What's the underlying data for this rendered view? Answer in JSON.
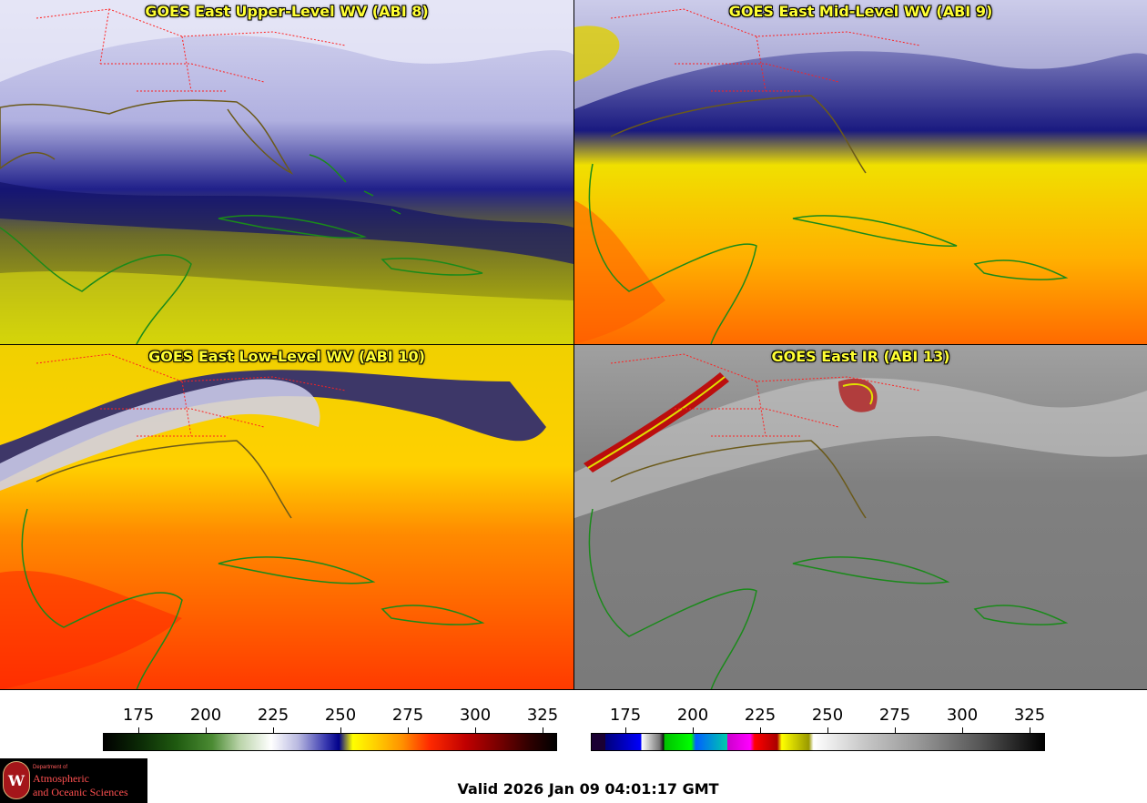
{
  "panels": {
    "upper": {
      "title": "GOES East Upper-Level WV (ABI 8)"
    },
    "mid": {
      "title": "GOES East Mid-Level WV (ABI 9)"
    },
    "low": {
      "title": "GOES East Low-Level WV (ABI 10)"
    },
    "ir": {
      "title": "GOES East IR (ABI 13)"
    }
  },
  "colorbars": {
    "wv": {
      "ticks": [
        "175",
        "200",
        "225",
        "250",
        "275",
        "300",
        "325"
      ]
    },
    "ir": {
      "ticks": [
        "175",
        "200",
        "225",
        "250",
        "275",
        "300",
        "325"
      ]
    }
  },
  "logo": {
    "line1": "Department of",
    "line2": "Atmospheric",
    "line3": "and Oceanic Sciences",
    "seal_letter": "W"
  },
  "timestamp": "Valid 2026 Jan 09 04:01:17 GMT",
  "colors": {
    "title_text": "#ffff33",
    "coastline": "#1a8a1a",
    "state_borders": "#ff2020"
  }
}
